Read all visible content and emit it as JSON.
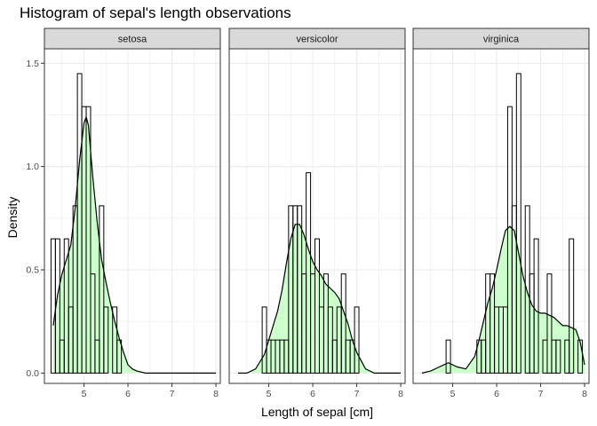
{
  "chart_data": {
    "type": "histogram",
    "title": "Histogram of sepal's length observations",
    "xlabel": "Length of sepal [cm]",
    "ylabel": "Density",
    "xlim": [
      4.1,
      8.1
    ],
    "ylim": [
      -0.05,
      1.57
    ],
    "x_ticks": [
      5,
      6,
      7,
      8
    ],
    "y_ticks": [
      0.0,
      0.5,
      1.0,
      1.5
    ],
    "y_tick_labels": [
      "0.0",
      "0.5",
      "1.0",
      "1.5"
    ],
    "grid": true,
    "theme": "bw",
    "bin_width": 0.1,
    "colors": {
      "bar_outline": "#000000",
      "density_fill": "#ccffcc",
      "density_line": "#000000",
      "strip_fill": "#d9d9d9",
      "grid": "#ebebeb",
      "panel_border": "#333333"
    },
    "panels": [
      {
        "name": "setosa",
        "bins": [
          {
            "x": 4.3,
            "density": 0.65
          },
          {
            "x": 4.4,
            "density": 0.65
          },
          {
            "x": 4.5,
            "density": 0.16
          },
          {
            "x": 4.6,
            "density": 0.65
          },
          {
            "x": 4.7,
            "density": 0.32
          },
          {
            "x": 4.8,
            "density": 0.81
          },
          {
            "x": 4.9,
            "density": 1.45
          },
          {
            "x": 5.0,
            "density": 1.29
          },
          {
            "x": 5.1,
            "density": 1.29
          },
          {
            "x": 5.2,
            "density": 0.48
          },
          {
            "x": 5.3,
            "density": 0.16
          },
          {
            "x": 5.4,
            "density": 0.81
          },
          {
            "x": 5.5,
            "density": 0.32
          },
          {
            "x": 5.6,
            "density": 0.0
          },
          {
            "x": 5.7,
            "density": 0.32
          },
          {
            "x": 5.8,
            "density": 0.16
          }
        ],
        "density": {
          "x": [
            4.3,
            4.4,
            4.5,
            4.6,
            4.7,
            4.8,
            4.9,
            5.0,
            5.05,
            5.1,
            5.2,
            5.3,
            5.4,
            5.5,
            5.6,
            5.7,
            5.8,
            5.9,
            6.0,
            6.1,
            6.2,
            6.4,
            6.6,
            7.0,
            7.5,
            8.0
          ],
          "y": [
            0.23,
            0.38,
            0.48,
            0.55,
            0.62,
            0.8,
            1.03,
            1.21,
            1.24,
            1.2,
            0.95,
            0.73,
            0.55,
            0.44,
            0.34,
            0.25,
            0.17,
            0.1,
            0.04,
            0.02,
            0.01,
            0.0,
            0.0,
            0.0,
            0.0,
            0.0
          ]
        }
      },
      {
        "name": "versicolor",
        "bins": [
          {
            "x": 4.9,
            "density": 0.32
          },
          {
            "x": 5.0,
            "density": 0.16
          },
          {
            "x": 5.1,
            "density": 0.16
          },
          {
            "x": 5.2,
            "density": 0.16
          },
          {
            "x": 5.3,
            "density": 0.16
          },
          {
            "x": 5.4,
            "density": 0.16
          },
          {
            "x": 5.5,
            "density": 0.81
          },
          {
            "x": 5.6,
            "density": 0.81
          },
          {
            "x": 5.7,
            "density": 0.81
          },
          {
            "x": 5.8,
            "density": 0.48
          },
          {
            "x": 5.9,
            "density": 0.97
          },
          {
            "x": 6.0,
            "density": 0.48
          },
          {
            "x": 6.1,
            "density": 0.65
          },
          {
            "x": 6.2,
            "density": 0.32
          },
          {
            "x": 6.3,
            "density": 0.48
          },
          {
            "x": 6.4,
            "density": 0.32
          },
          {
            "x": 6.5,
            "density": 0.16
          },
          {
            "x": 6.6,
            "density": 0.32
          },
          {
            "x": 6.7,
            "density": 0.48
          },
          {
            "x": 6.8,
            "density": 0.16
          },
          {
            "x": 6.9,
            "density": 0.16
          },
          {
            "x": 7.0,
            "density": 0.32
          }
        ],
        "density": {
          "x": [
            4.3,
            4.5,
            4.7,
            4.9,
            5.0,
            5.1,
            5.2,
            5.3,
            5.4,
            5.5,
            5.6,
            5.7,
            5.8,
            5.9,
            6.0,
            6.1,
            6.2,
            6.3,
            6.4,
            6.5,
            6.6,
            6.7,
            6.8,
            6.9,
            7.0,
            7.2,
            7.4,
            7.6,
            8.0
          ],
          "y": [
            0.0,
            0.0,
            0.02,
            0.09,
            0.16,
            0.23,
            0.3,
            0.4,
            0.53,
            0.65,
            0.72,
            0.72,
            0.67,
            0.6,
            0.54,
            0.5,
            0.47,
            0.43,
            0.41,
            0.39,
            0.36,
            0.3,
            0.24,
            0.16,
            0.1,
            0.02,
            0.0,
            0.0,
            0.0
          ]
        }
      },
      {
        "name": "virginica",
        "bins": [
          {
            "x": 4.9,
            "density": 0.16
          },
          {
            "x": 5.6,
            "density": 0.16
          },
          {
            "x": 5.7,
            "density": 0.16
          },
          {
            "x": 5.8,
            "density": 0.48
          },
          {
            "x": 5.9,
            "density": 0.48
          },
          {
            "x": 6.0,
            "density": 0.32
          },
          {
            "x": 6.1,
            "density": 0.32
          },
          {
            "x": 6.2,
            "density": 0.32
          },
          {
            "x": 6.3,
            "density": 1.29
          },
          {
            "x": 6.4,
            "density": 0.81
          },
          {
            "x": 6.5,
            "density": 1.45
          },
          {
            "x": 6.6,
            "density": 0.0
          },
          {
            "x": 6.7,
            "density": 0.81
          },
          {
            "x": 6.8,
            "density": 0.48
          },
          {
            "x": 6.9,
            "density": 0.65
          },
          {
            "x": 7.0,
            "density": 0.0
          },
          {
            "x": 7.1,
            "density": 0.16
          },
          {
            "x": 7.2,
            "density": 0.48
          },
          {
            "x": 7.3,
            "density": 0.16
          },
          {
            "x": 7.4,
            "density": 0.16
          },
          {
            "x": 7.6,
            "density": 0.16
          },
          {
            "x": 7.7,
            "density": 0.65
          },
          {
            "x": 7.9,
            "density": 0.16
          }
        ],
        "density": {
          "x": [
            4.3,
            4.5,
            4.7,
            4.8,
            4.9,
            5.0,
            5.1,
            5.3,
            5.5,
            5.6,
            5.7,
            5.8,
            5.9,
            6.0,
            6.1,
            6.2,
            6.3,
            6.4,
            6.5,
            6.6,
            6.7,
            6.8,
            6.9,
            7.0,
            7.1,
            7.2,
            7.3,
            7.4,
            7.5,
            7.6,
            7.7,
            7.8,
            7.9,
            8.0
          ],
          "y": [
            0.0,
            0.01,
            0.03,
            0.04,
            0.05,
            0.04,
            0.03,
            0.02,
            0.08,
            0.16,
            0.25,
            0.34,
            0.41,
            0.5,
            0.6,
            0.69,
            0.71,
            0.69,
            0.58,
            0.47,
            0.39,
            0.33,
            0.3,
            0.29,
            0.29,
            0.28,
            0.27,
            0.25,
            0.23,
            0.23,
            0.22,
            0.21,
            0.15,
            0.04
          ]
        }
      }
    ]
  }
}
